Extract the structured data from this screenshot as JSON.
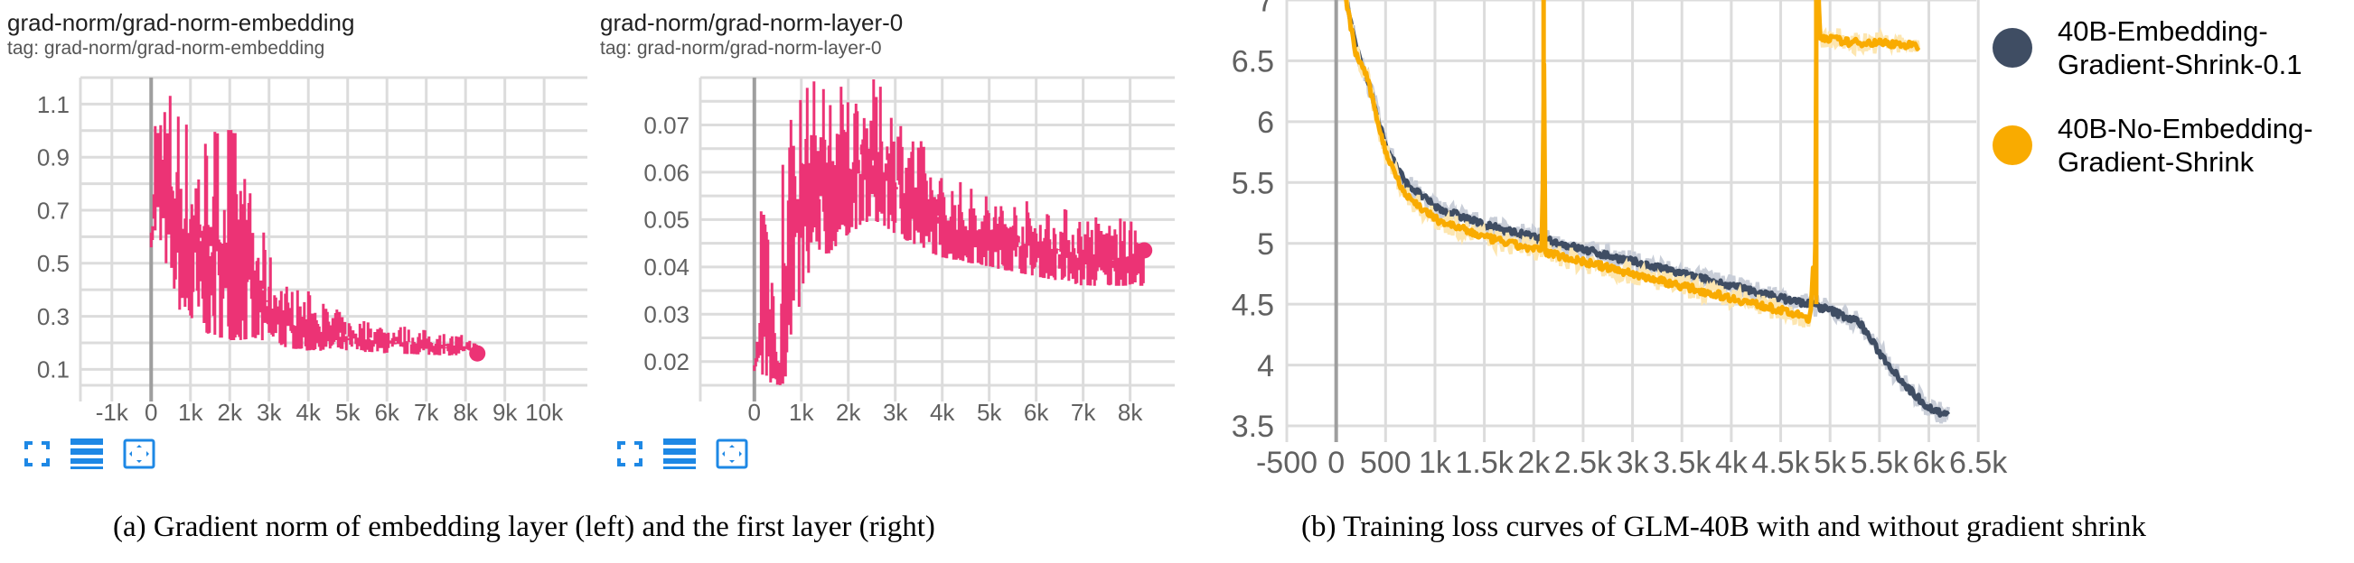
{
  "panels": [
    {
      "title": "grad-norm/grad-norm-embedding",
      "tag": "tag: grad-norm/grad-norm-embedding"
    },
    {
      "title": "grad-norm/grad-norm-layer-0",
      "tag": "tag: grad-norm/grad-norm-layer-0"
    }
  ],
  "toolbar_icons": [
    "fullscreen-icon",
    "list-icon",
    "fit-domain-icon"
  ],
  "captions": {
    "a": "(a) Gradient norm of embedding layer (left) and the first layer (right)",
    "b": "(b) Training loss curves of GLM-40B with and without gradient shrink"
  },
  "colors": {
    "pink": "#ec3375",
    "dark": "#3f4d63",
    "orange": "#f9ab00",
    "grid": "#dcdcdc",
    "icon": "#1e88e5"
  },
  "chart_data": [
    {
      "type": "line",
      "title": "grad-norm/grad-norm-embedding",
      "xlim": [
        -1800,
        11100
      ],
      "ylim": [
        0.04,
        1.2
      ],
      "grid": true,
      "xticks": [
        -1000,
        0,
        1000,
        2000,
        3000,
        4000,
        5000,
        6000,
        7000,
        8000,
        9000,
        10000
      ],
      "xtick_labels": [
        "-1k",
        "0",
        "1k",
        "2k",
        "3k",
        "4k",
        "5k",
        "6k",
        "7k",
        "8k",
        "9k",
        "10k"
      ],
      "yticks": [
        0.1,
        0.3,
        0.5,
        0.7,
        0.9,
        1.1
      ],
      "ytick_labels": [
        "0.1",
        "0.3",
        "0.5",
        "0.7",
        "0.9",
        "1.1"
      ],
      "series": [
        {
          "color": "#ec3375",
          "envelope": {
            "x": [
              0,
              60,
              110,
              500,
              700,
              1000,
              1500,
              2000,
              2500,
              3000,
              3500,
              4000,
              5000,
              6000,
              7000,
              8000,
              8300
            ],
            "low": [
              0.56,
              0.6,
              0.6,
              0.45,
              0.33,
              0.26,
              0.23,
              0.21,
              0.21,
              0.2,
              0.18,
              0.17,
              0.17,
              0.16,
              0.155,
              0.15,
              0.15
            ],
            "high": [
              0.62,
              0.8,
              1.2,
              1.2,
              1.15,
              1.05,
              1.05,
              1.1,
              0.8,
              0.55,
              0.42,
              0.4,
              0.3,
              0.28,
              0.25,
              0.23,
              0.2
            ]
          },
          "last_value": [
            8300,
            0.16
          ]
        }
      ]
    },
    {
      "type": "line",
      "title": "grad-norm/grad-norm-layer-0",
      "xlim": [
        -1150,
        8950
      ],
      "ylim": [
        0.015,
        0.08
      ],
      "grid": true,
      "xticks": [
        0,
        1000,
        2000,
        3000,
        4000,
        5000,
        6000,
        7000,
        8000
      ],
      "xtick_labels": [
        "0",
        "1k",
        "2k",
        "3k",
        "4k",
        "5k",
        "6k",
        "7k",
        "8k"
      ],
      "yticks": [
        0.02,
        0.03,
        0.04,
        0.05,
        0.06,
        0.07
      ],
      "ytick_labels": [
        "0.02",
        "0.03",
        "0.04",
        "0.05",
        "0.06",
        "0.07"
      ],
      "series": [
        {
          "color": "#ec3375",
          "envelope": {
            "x": [
              0,
              100,
              170,
              550,
              600,
              800,
              1000,
              1500,
              2000,
              2500,
              3000,
              3500,
              4000,
              5000,
              6000,
              7000,
              8000,
              8300
            ],
            "low": [
              0.018,
              0.02,
              0.015,
              0.015,
              0.015,
              0.02,
              0.035,
              0.042,
              0.047,
              0.05,
              0.047,
              0.044,
              0.042,
              0.04,
              0.038,
              0.036,
              0.036,
              0.036
            ],
            "high": [
              0.02,
              0.03,
              0.08,
              0.02,
              0.07,
              0.08,
              0.08,
              0.08,
              0.08,
              0.08,
              0.076,
              0.068,
              0.06,
              0.056,
              0.054,
              0.052,
              0.05,
              0.047
            ]
          },
          "last_value": [
            8300,
            0.0435
          ]
        }
      ]
    },
    {
      "type": "line",
      "xlim": [
        -500,
        6480
      ],
      "ylim": [
        3.5,
        7
      ],
      "grid": true,
      "legend": "right",
      "xticks": [
        -500,
        0,
        500,
        1000,
        1500,
        2000,
        2500,
        3000,
        3500,
        4000,
        4500,
        5000,
        5500,
        6000,
        6500
      ],
      "xtick_labels": [
        "-500",
        "0",
        "500",
        "1k",
        "1.5k",
        "2k",
        "2.5k",
        "3k",
        "3.5k",
        "4k",
        "4.5k",
        "5k",
        "5.5k",
        "6k",
        "6.5k"
      ],
      "yticks": [
        3.5,
        4,
        4.5,
        5,
        5.5,
        6,
        6.5,
        7
      ],
      "ytick_labels": [
        "3.5",
        "4",
        "4.5",
        "5",
        "5.5",
        "6",
        "6.5",
        "7"
      ],
      "series": [
        {
          "name": "40B-Embedding-\nGradient-Shrink-0.1",
          "color": "#3f4d63",
          "x": [
            100,
            200,
            300,
            500,
            700,
            1000,
            1500,
            2000,
            2500,
            3000,
            3500,
            4000,
            4500,
            4800,
            5000,
            5300,
            5500,
            5800,
            6000,
            6200
          ],
          "y": [
            7.0,
            6.6,
            6.4,
            5.8,
            5.5,
            5.3,
            5.15,
            5.05,
            4.95,
            4.85,
            4.75,
            4.65,
            4.55,
            4.5,
            4.45,
            4.35,
            4.1,
            3.8,
            3.65,
            3.58
          ]
        },
        {
          "name": "40B-No-Embedding-\nGradient-Shrink",
          "color": "#f9ab00",
          "x": [
            100,
            200,
            300,
            500,
            700,
            1000,
            1500,
            2000,
            2090,
            2100,
            2110,
            2500,
            3000,
            3500,
            4000,
            4500,
            4800,
            4830,
            4850,
            4860,
            4900,
            5200,
            5500,
            5900
          ],
          "y": [
            7.0,
            6.55,
            6.4,
            5.75,
            5.4,
            5.2,
            5.05,
            4.95,
            4.95,
            7.5,
            4.93,
            4.85,
            4.75,
            4.65,
            4.55,
            4.45,
            4.38,
            4.8,
            4.4,
            7.5,
            6.7,
            6.65,
            6.65,
            6.62
          ]
        }
      ]
    }
  ]
}
